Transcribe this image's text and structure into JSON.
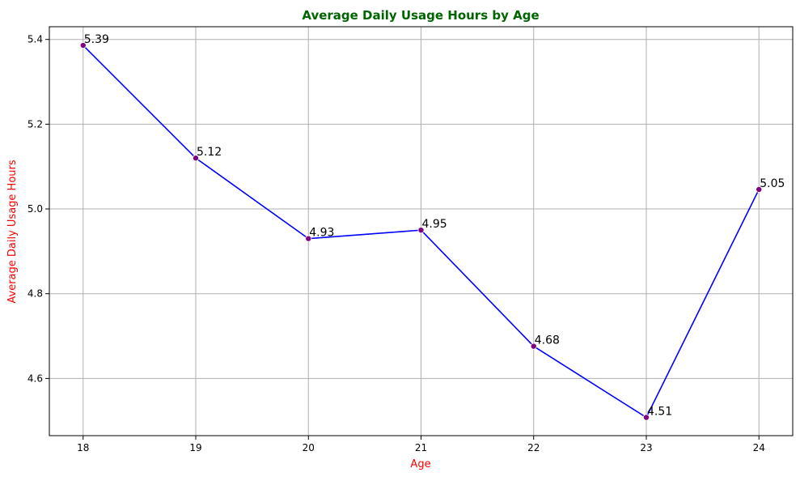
{
  "chart_data": {
    "type": "line",
    "title": "Average Daily Usage Hours by Age",
    "xlabel": "Age",
    "ylabel": "Average Daily Usage Hours",
    "x": [
      18,
      19,
      20,
      21,
      22,
      23,
      24
    ],
    "series": [
      {
        "values": [
          5.386,
          5.12,
          4.93,
          4.95,
          4.676,
          4.508,
          5.046
        ],
        "labels": [
          "5.39",
          "5.12",
          "4.93",
          "4.95",
          "4.68",
          "4.51",
          "5.05"
        ]
      }
    ],
    "xlim": [
      17.7,
      24.3
    ],
    "ylim": [
      4.465,
      5.43
    ],
    "yticks": [
      4.6,
      4.8,
      5.0,
      5.2,
      5.4
    ],
    "ytick_labels": [
      "4.6",
      "4.8",
      "5.0",
      "5.2",
      "5.4"
    ],
    "xtick_labels": [
      "18",
      "19",
      "20",
      "21",
      "22",
      "23",
      "24"
    ],
    "grid": true,
    "colors": {
      "line": "#0000ff",
      "marker": "#800080",
      "title": "#006400",
      "axis_labels": "#ff0000",
      "grid": "#b0b0b0"
    }
  }
}
